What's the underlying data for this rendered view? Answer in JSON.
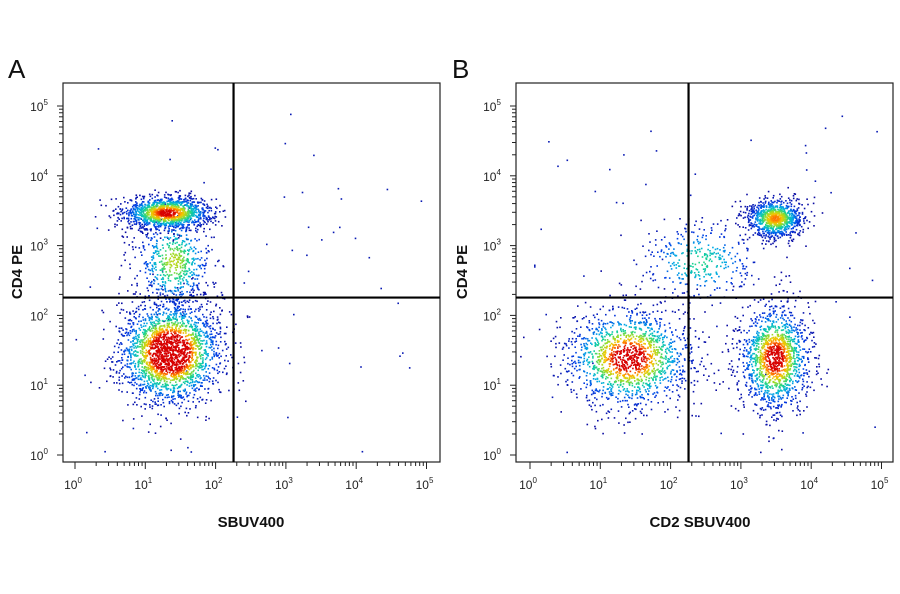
{
  "chart_data": [
    {
      "type": "scatter",
      "panel_label": "A",
      "xlabel": "SBUV400",
      "ylabel": "CD4 PE",
      "x_scale": "log",
      "y_scale": "log",
      "xlim": [
        1,
        100000
      ],
      "ylim": [
        1,
        100000
      ],
      "x_ticks": [
        {
          "base": "10",
          "exp": "0"
        },
        {
          "base": "10",
          "exp": "1"
        },
        {
          "base": "10",
          "exp": "2"
        },
        {
          "base": "10",
          "exp": "3"
        },
        {
          "base": "10",
          "exp": "4"
        },
        {
          "base": "10",
          "exp": "5"
        }
      ],
      "y_ticks": [
        {
          "base": "10",
          "exp": "0"
        },
        {
          "base": "10",
          "exp": "1"
        },
        {
          "base": "10",
          "exp": "2"
        },
        {
          "base": "10",
          "exp": "3"
        },
        {
          "base": "10",
          "exp": "4"
        },
        {
          "base": "10",
          "exp": "5"
        }
      ],
      "quadrant_gate": {
        "x": 180,
        "y": 180
      },
      "populations": [
        {
          "x_center": 20,
          "y_center": 3000,
          "x_spread": 0.32,
          "y_spread": 0.12,
          "weight": 0.3
        },
        {
          "x_center": 22,
          "y_center": 30,
          "x_spread": 0.36,
          "y_spread": 0.36,
          "weight": 0.56
        },
        {
          "x_center": 25,
          "y_center": 600,
          "x_spread": 0.28,
          "y_spread": 0.35,
          "weight": 0.14
        }
      ],
      "grid": false
    },
    {
      "type": "scatter",
      "panel_label": "B",
      "xlabel": "CD2 SBUV400",
      "ylabel": "CD4 PE",
      "x_scale": "log",
      "y_scale": "log",
      "xlim": [
        1,
        100000
      ],
      "ylim": [
        1,
        100000
      ],
      "x_ticks": [
        {
          "base": "10",
          "exp": "0"
        },
        {
          "base": "10",
          "exp": "1"
        },
        {
          "base": "10",
          "exp": "2"
        },
        {
          "base": "10",
          "exp": "3"
        },
        {
          "base": "10",
          "exp": "4"
        },
        {
          "base": "10",
          "exp": "5"
        }
      ],
      "y_ticks": [
        {
          "base": "10",
          "exp": "0"
        },
        {
          "base": "10",
          "exp": "1"
        },
        {
          "base": "10",
          "exp": "2"
        },
        {
          "base": "10",
          "exp": "3"
        },
        {
          "base": "10",
          "exp": "4"
        },
        {
          "base": "10",
          "exp": "5"
        }
      ],
      "quadrant_gate": {
        "x": 180,
        "y": 180
      },
      "populations": [
        {
          "x_center": 3000,
          "y_center": 2500,
          "x_spread": 0.2,
          "y_spread": 0.14,
          "weight": 0.22
        },
        {
          "x_center": 25,
          "y_center": 25,
          "x_spread": 0.45,
          "y_spread": 0.35,
          "weight": 0.36
        },
        {
          "x_center": 3000,
          "y_center": 25,
          "x_spread": 0.25,
          "y_spread": 0.38,
          "weight": 0.34
        },
        {
          "x_center": 250,
          "y_center": 600,
          "x_spread": 0.45,
          "y_spread": 0.3,
          "weight": 0.08
        }
      ],
      "grid": false
    }
  ]
}
